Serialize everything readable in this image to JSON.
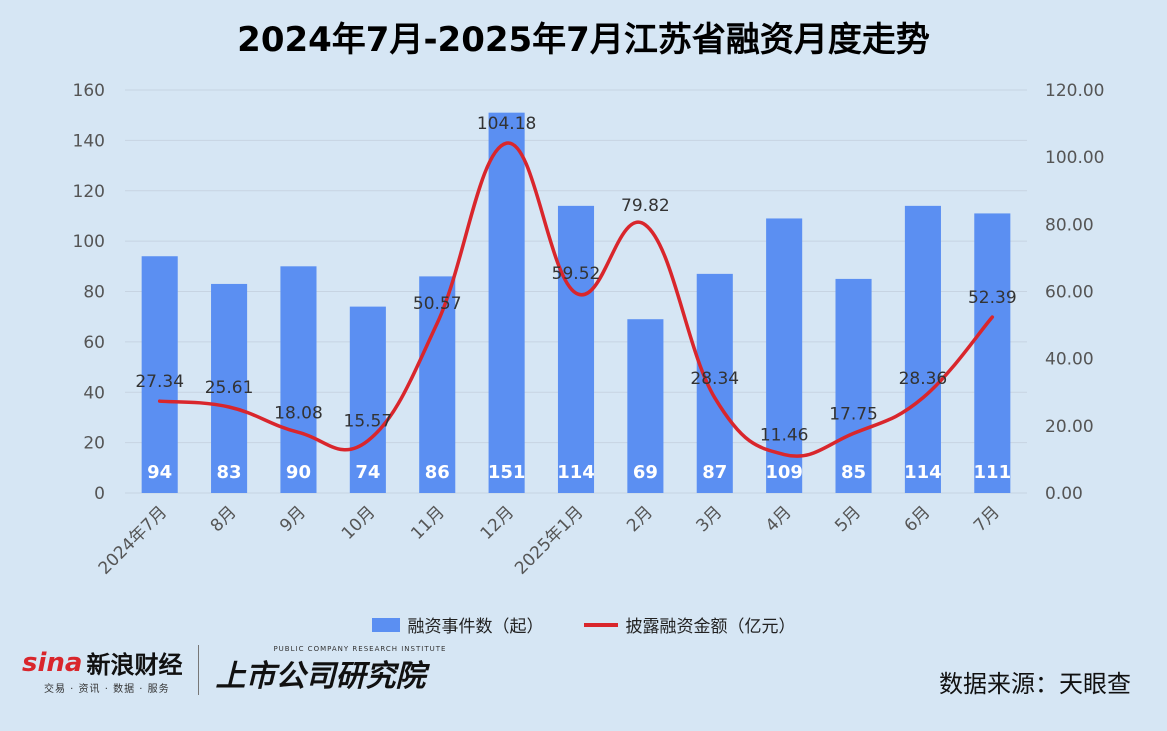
{
  "title": "2024年7月-2025年7月江苏省融资月度走势",
  "chart_data": {
    "type": "bar",
    "title": "2024年7月-2025年7月江苏省融资月度走势",
    "categories": [
      "2024年7月",
      "8月",
      "9月",
      "10月",
      "11月",
      "12月",
      "2025年1月",
      "2月",
      "3月",
      "4月",
      "5月",
      "6月",
      "7月"
    ],
    "series": [
      {
        "name": "融资事件数（起）",
        "type": "bar",
        "axis": "left",
        "color": "#5b8ff2",
        "values": [
          94,
          83,
          90,
          74,
          86,
          151,
          114,
          69,
          87,
          109,
          85,
          114,
          111
        ],
        "labels": [
          "94",
          "83",
          "90",
          "74",
          "86",
          "151",
          "114",
          "69",
          "87",
          "109",
          "85",
          "114",
          "111"
        ]
      },
      {
        "name": "披露融资金额（亿元）",
        "type": "line",
        "axis": "right",
        "color": "#d9262c",
        "values": [
          27.34,
          25.61,
          18.08,
          15.57,
          50.57,
          104.18,
          59.52,
          79.82,
          28.34,
          11.46,
          17.75,
          28.36,
          52.39
        ],
        "labels": [
          "27.34",
          "25.61",
          "18.08",
          "15.57",
          "50.57",
          "104.18",
          "59.52",
          "79.82",
          "28.34",
          "11.46",
          "17.75",
          "28.36",
          "52.39"
        ]
      }
    ],
    "y_left": {
      "min": 0,
      "max": 160,
      "ticks": [
        "0",
        "20",
        "40",
        "60",
        "80",
        "100",
        "120",
        "140",
        "160"
      ]
    },
    "y_right": {
      "min": 0,
      "max": 120,
      "ticks": [
        "0.00",
        "20.00",
        "40.00",
        "60.00",
        "80.00",
        "100.00",
        "120.00"
      ]
    },
    "grid": true,
    "legend": "bottom-center"
  },
  "legend": {
    "bar_label": "融资事件数（起）",
    "line_label": "披露融资金额（亿元）"
  },
  "footer": {
    "sina_word": "sina",
    "sina_cn": "新浪财经",
    "sina_sub": "交易 · 资讯 · 数据 · 服务",
    "inst_en": "PUBLIC COMPANY RESEARCH INSTITUTE",
    "inst_cn": "上市公司研究院",
    "source": "数据来源：天眼查"
  }
}
